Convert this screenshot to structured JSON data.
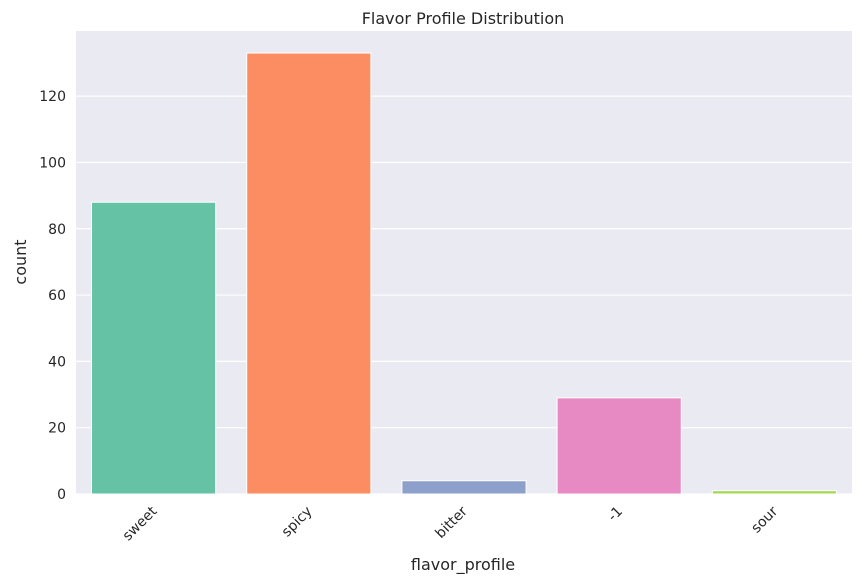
{
  "chart_data": {
    "type": "bar",
    "title": "Flavor Profile Distribution",
    "xlabel": "flavor_profile",
    "ylabel": "count",
    "categories": [
      "sweet",
      "spicy",
      "bitter",
      "-1",
      "sour"
    ],
    "values": [
      88,
      133,
      4,
      29,
      1
    ],
    "colors": [
      "#66c2a5",
      "#fc8d62",
      "#8da0cb",
      "#e78ac3",
      "#a6d854"
    ],
    "ylim": [
      0,
      139.65
    ],
    "yticks": [
      0,
      20,
      40,
      60,
      80,
      100,
      120
    ],
    "grid": true,
    "background": "#eaeaf2"
  }
}
